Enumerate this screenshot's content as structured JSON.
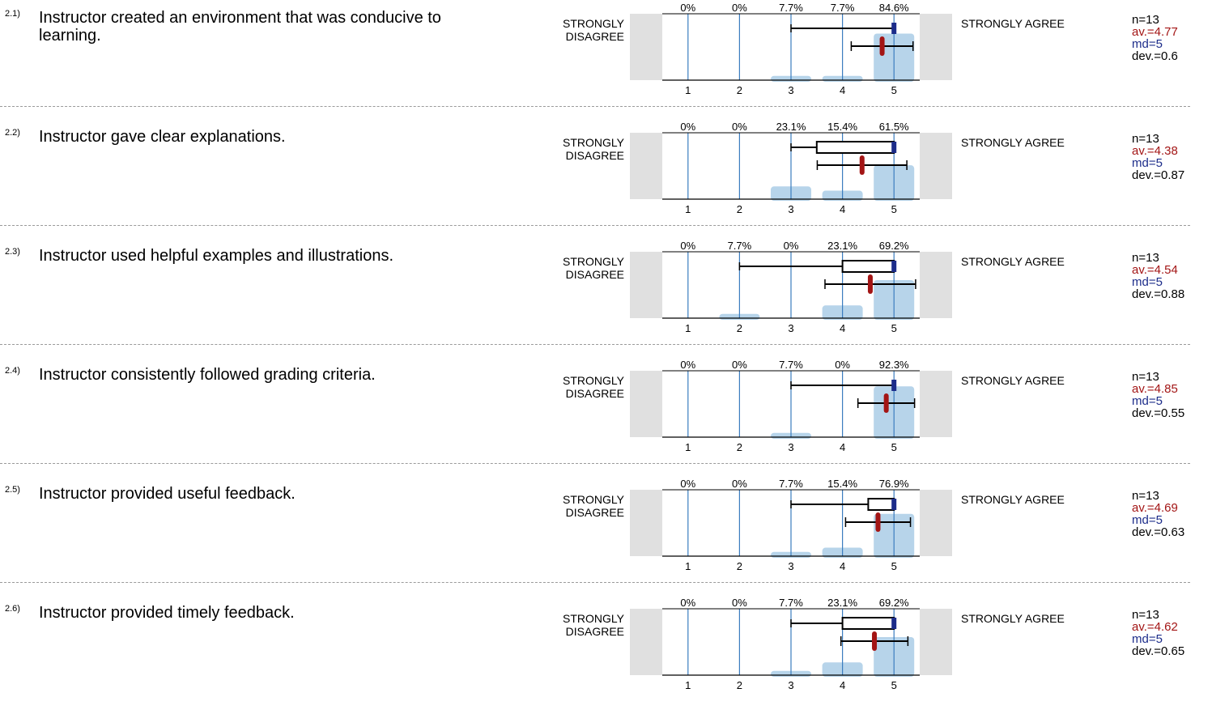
{
  "scale": {
    "left_label": "STRONGLY DISAGREE",
    "right_label": "STRONGLY AGREE",
    "ticks": [
      "1",
      "2",
      "3",
      "4",
      "5"
    ]
  },
  "colors": {
    "bar": "#b7d4ea",
    "gridline": "#3b7dbf",
    "side_block": "#e0e0e0",
    "mean_marker": "#a31515",
    "median_marker": "#1c2c8a"
  },
  "questions": [
    {
      "num": "2.1)",
      "text": "Instructor created an environment that was conducive to learning.",
      "n": "n=13",
      "av": "av.=4.77",
      "md": "md=5",
      "dev": "dev.=0.6",
      "percents": [
        "0%",
        "0%",
        "7.7%",
        "7.7%",
        "84.6%"
      ]
    },
    {
      "num": "2.2)",
      "text": "Instructor gave clear explanations.",
      "n": "n=13",
      "av": "av.=4.38",
      "md": "md=5",
      "dev": "dev.=0.87",
      "percents": [
        "0%",
        "0%",
        "23.1%",
        "15.4%",
        "61.5%"
      ]
    },
    {
      "num": "2.3)",
      "text": "Instructor used helpful examples and illustrations.",
      "n": "n=13",
      "av": "av.=4.54",
      "md": "md=5",
      "dev": "dev.=0.88",
      "percents": [
        "0%",
        "7.7%",
        "0%",
        "23.1%",
        "69.2%"
      ]
    },
    {
      "num": "2.4)",
      "text": "Instructor consistently followed grading criteria.",
      "n": "n=13",
      "av": "av.=4.85",
      "md": "md=5",
      "dev": "dev.=0.55",
      "percents": [
        "0%",
        "0%",
        "7.7%",
        "0%",
        "92.3%"
      ]
    },
    {
      "num": "2.5)",
      "text": "Instructor provided useful feedback.",
      "n": "n=13",
      "av": "av.=4.69",
      "md": "md=5",
      "dev": "dev.=0.63",
      "percents": [
        "0%",
        "0%",
        "7.7%",
        "15.4%",
        "76.9%"
      ]
    },
    {
      "num": "2.6)",
      "text": "Instructor provided timely feedback.",
      "n": "n=13",
      "av": "av.=4.62",
      "md": "md=5",
      "dev": "dev.=0.65",
      "percents": [
        "0%",
        "0%",
        "7.7%",
        "23.1%",
        "69.2%"
      ]
    }
  ],
  "chart_data": [
    {
      "type": "bar",
      "categories": [
        1,
        2,
        3,
        4,
        5
      ],
      "values": [
        0,
        0,
        7.7,
        7.7,
        84.6
      ],
      "mean": 4.77,
      "median": 5,
      "sd": 0.6,
      "n": 13,
      "box": {
        "min": 3,
        "q1": 5,
        "q3": 5,
        "max": 5
      }
    },
    {
      "type": "bar",
      "categories": [
        1,
        2,
        3,
        4,
        5
      ],
      "values": [
        0,
        0,
        23.1,
        15.4,
        61.5
      ],
      "mean": 4.38,
      "median": 5,
      "sd": 0.87,
      "n": 13,
      "box": {
        "min": 3,
        "q1": 3.5,
        "q3": 5,
        "max": 5
      }
    },
    {
      "type": "bar",
      "categories": [
        1,
        2,
        3,
        4,
        5
      ],
      "values": [
        0,
        7.7,
        0,
        23.1,
        69.2
      ],
      "mean": 4.54,
      "median": 5,
      "sd": 0.88,
      "n": 13,
      "box": {
        "min": 2,
        "q1": 4,
        "q3": 5,
        "max": 5
      }
    },
    {
      "type": "bar",
      "categories": [
        1,
        2,
        3,
        4,
        5
      ],
      "values": [
        0,
        0,
        7.7,
        0,
        92.3
      ],
      "mean": 4.85,
      "median": 5,
      "sd": 0.55,
      "n": 13,
      "box": {
        "min": 3,
        "q1": 5,
        "q3": 5,
        "max": 5
      }
    },
    {
      "type": "bar",
      "categories": [
        1,
        2,
        3,
        4,
        5
      ],
      "values": [
        0,
        0,
        7.7,
        15.4,
        76.9
      ],
      "mean": 4.69,
      "median": 5,
      "sd": 0.63,
      "n": 13,
      "box": {
        "min": 3,
        "q1": 4.5,
        "q3": 5,
        "max": 5
      }
    },
    {
      "type": "bar",
      "categories": [
        1,
        2,
        3,
        4,
        5
      ],
      "values": [
        0,
        0,
        7.7,
        23.1,
        69.2
      ],
      "mean": 4.62,
      "median": 5,
      "sd": 0.65,
      "n": 13,
      "box": {
        "min": 3,
        "q1": 4,
        "q3": 5,
        "max": 5
      }
    }
  ]
}
